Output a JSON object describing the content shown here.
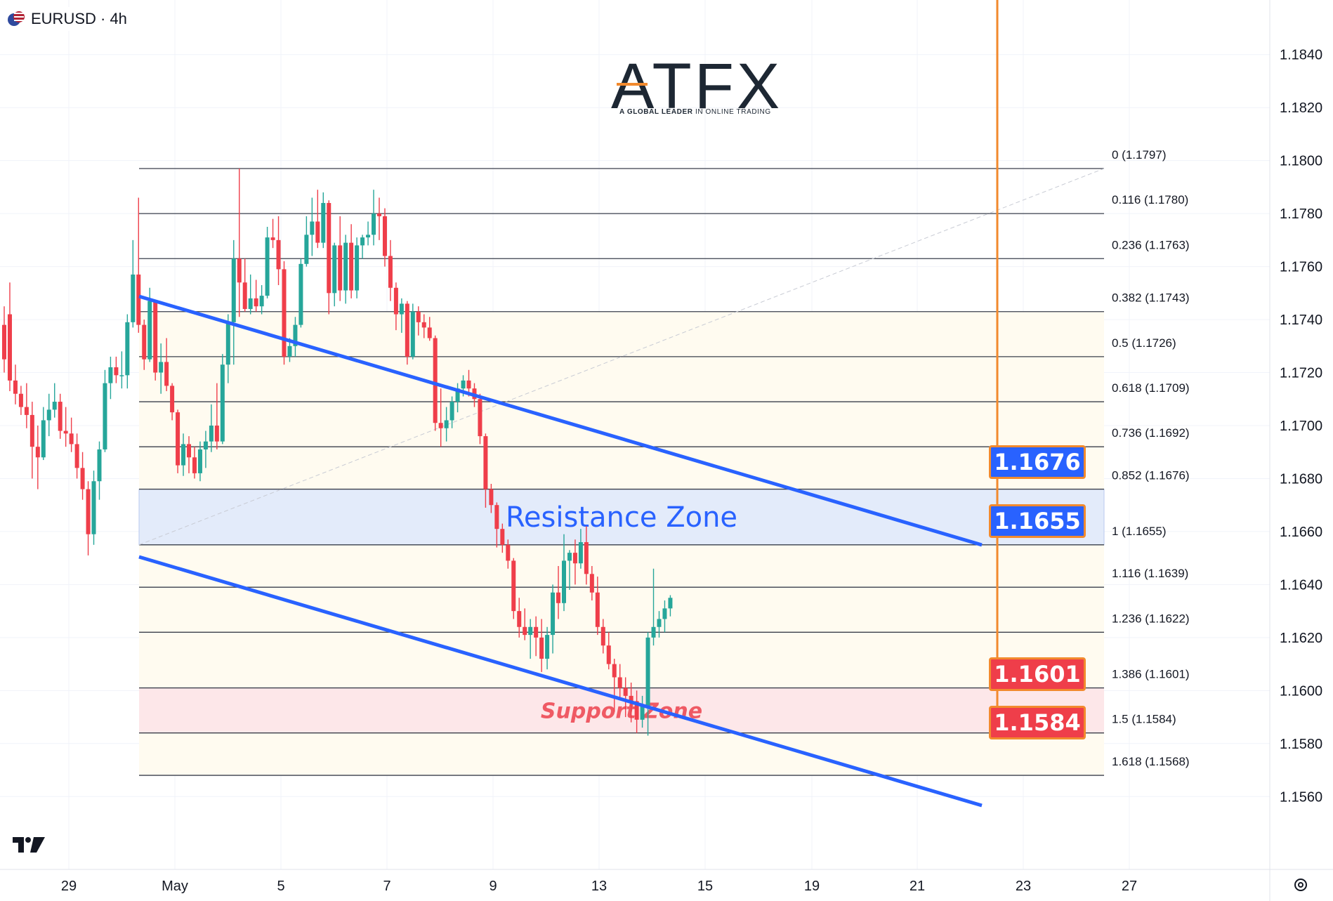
{
  "header": {
    "symbol_title": "EURUSD · 4h"
  },
  "logo": {
    "brand": "ATFX",
    "tagline_bold": "A GLOBAL LEADER",
    "tagline_rest": " IN ONLINE TRADING"
  },
  "colors": {
    "bull": "#26a69a",
    "bear": "#ef3e4a",
    "channel": "#2962ff",
    "resistance_fill": "#e3ebfa",
    "support_fill": "#fde7e9",
    "tag_blue": "#2962ff",
    "tag_red": "#ef3e4a",
    "tag_border": "#f28a2e"
  },
  "chart_data": {
    "type": "candlestick",
    "title": "EURUSD · 4h",
    "price_axis": {
      "ticks": [
        "1.1840",
        "1.1820",
        "1.1800",
        "1.1780",
        "1.1760",
        "1.1740",
        "1.1720",
        "1.1700",
        "1.1680",
        "1.1660",
        "1.1640",
        "1.1620",
        "1.1600",
        "1.1580",
        "1.1560"
      ],
      "range": [
        1.1548,
        1.1852
      ]
    },
    "date_axis": {
      "ticks": [
        "29",
        "May",
        "5",
        "7",
        "9",
        "13",
        "15",
        "19",
        "21",
        "23",
        "27"
      ]
    },
    "fib_levels": [
      {
        "ratio": "0",
        "price": "1.1797",
        "label": "0 (1.1797)"
      },
      {
        "ratio": "0.116",
        "price": "1.1780",
        "label": "0.116 (1.1780)"
      },
      {
        "ratio": "0.236",
        "price": "1.1763",
        "label": "0.236 (1.1763)"
      },
      {
        "ratio": "0.382",
        "price": "1.1743",
        "label": "0.382 (1.1743)"
      },
      {
        "ratio": "0.5",
        "price": "1.1726",
        "label": "0.5 (1.1726)"
      },
      {
        "ratio": "0.618",
        "price": "1.1709",
        "label": "0.618 (1.1709)"
      },
      {
        "ratio": "0.736",
        "price": "1.1692",
        "label": "0.736 (1.1692)"
      },
      {
        "ratio": "0.852",
        "price": "1.1676",
        "label": "0.852 (1.1676)"
      },
      {
        "ratio": "1",
        "price": "1.1655",
        "label": "1 (1.1655)"
      },
      {
        "ratio": "1.116",
        "price": "1.1639",
        "label": "1.116 (1.1639)"
      },
      {
        "ratio": "1.236",
        "price": "1.1622",
        "label": "1.236 (1.1622)"
      },
      {
        "ratio": "1.386",
        "price": "1.1601",
        "label": "1.386 (1.1601)"
      },
      {
        "ratio": "1.5",
        "price": "1.1584",
        "label": "1.5 (1.1584)"
      },
      {
        "ratio": "1.618",
        "price": "1.1568",
        "label": "1.618 (1.1568)"
      }
    ],
    "zones": [
      {
        "name": "Resistance Zone",
        "top": 1.1676,
        "bottom": 1.1655
      },
      {
        "name": "Support Zone",
        "top": 1.1601,
        "bottom": 1.1584
      }
    ],
    "price_tags": [
      {
        "value": "1.1676",
        "color": "blue"
      },
      {
        "value": "1.1655",
        "color": "blue"
      },
      {
        "value": "1.1601",
        "color": "red"
      },
      {
        "value": "1.1584",
        "color": "red"
      }
    ],
    "candles": [
      {
        "o": 1.1738,
        "h": 1.1745,
        "l": 1.172,
        "c": 1.1725
      },
      {
        "o": 1.1742,
        "h": 1.1754,
        "l": 1.1713,
        "c": 1.1717
      },
      {
        "o": 1.1717,
        "h": 1.1723,
        "l": 1.1708,
        "c": 1.1712
      },
      {
        "o": 1.1712,
        "h": 1.1715,
        "l": 1.1704,
        "c": 1.1707
      },
      {
        "o": 1.1707,
        "h": 1.1716,
        "l": 1.1699,
        "c": 1.1704
      },
      {
        "o": 1.1704,
        "h": 1.1709,
        "l": 1.168,
        "c": 1.1692
      },
      {
        "o": 1.1692,
        "h": 1.17,
        "l": 1.1676,
        "c": 1.1688
      },
      {
        "o": 1.1688,
        "h": 1.1707,
        "l": 1.1687,
        "c": 1.1702
      },
      {
        "o": 1.1702,
        "h": 1.1712,
        "l": 1.1696,
        "c": 1.1706
      },
      {
        "o": 1.1706,
        "h": 1.1716,
        "l": 1.1703,
        "c": 1.1709
      },
      {
        "o": 1.1709,
        "h": 1.1712,
        "l": 1.1695,
        "c": 1.1698
      },
      {
        "o": 1.1698,
        "h": 1.1707,
        "l": 1.1692,
        "c": 1.1697
      },
      {
        "o": 1.1697,
        "h": 1.1703,
        "l": 1.169,
        "c": 1.1693
      },
      {
        "o": 1.1693,
        "h": 1.1697,
        "l": 1.168,
        "c": 1.1684
      },
      {
        "o": 1.1684,
        "h": 1.169,
        "l": 1.1672,
        "c": 1.1676
      },
      {
        "o": 1.1676,
        "h": 1.1679,
        "l": 1.1651,
        "c": 1.1659
      },
      {
        "o": 1.1659,
        "h": 1.1683,
        "l": 1.1655,
        "c": 1.1679
      },
      {
        "o": 1.1679,
        "h": 1.1694,
        "l": 1.1672,
        "c": 1.1691
      },
      {
        "o": 1.1691,
        "h": 1.1721,
        "l": 1.169,
        "c": 1.1716
      },
      {
        "o": 1.1716,
        "h": 1.1726,
        "l": 1.171,
        "c": 1.1722
      },
      {
        "o": 1.1722,
        "h": 1.1726,
        "l": 1.1716,
        "c": 1.1719
      },
      {
        "o": 1.1719,
        "h": 1.1728,
        "l": 1.1714,
        "c": 1.1719
      },
      {
        "o": 1.1719,
        "h": 1.1742,
        "l": 1.1714,
        "c": 1.1739
      },
      {
        "o": 1.1739,
        "h": 1.177,
        "l": 1.1737,
        "c": 1.1757
      },
      {
        "o": 1.1757,
        "h": 1.1786,
        "l": 1.1735,
        "c": 1.1738
      },
      {
        "o": 1.1738,
        "h": 1.174,
        "l": 1.1721,
        "c": 1.1725
      },
      {
        "o": 1.1725,
        "h": 1.1752,
        "l": 1.1724,
        "c": 1.1747
      },
      {
        "o": 1.1747,
        "h": 1.1747,
        "l": 1.1717,
        "c": 1.172
      },
      {
        "o": 1.172,
        "h": 1.1731,
        "l": 1.1712,
        "c": 1.1724
      },
      {
        "o": 1.1724,
        "h": 1.1733,
        "l": 1.1713,
        "c": 1.1715
      },
      {
        "o": 1.1715,
        "h": 1.1716,
        "l": 1.1702,
        "c": 1.1705
      },
      {
        "o": 1.1705,
        "h": 1.1706,
        "l": 1.1682,
        "c": 1.1685
      },
      {
        "o": 1.1685,
        "h": 1.1697,
        "l": 1.1681,
        "c": 1.1693
      },
      {
        "o": 1.1693,
        "h": 1.1696,
        "l": 1.1682,
        "c": 1.1688
      },
      {
        "o": 1.1688,
        "h": 1.1692,
        "l": 1.168,
        "c": 1.1682
      },
      {
        "o": 1.1682,
        "h": 1.1694,
        "l": 1.1679,
        "c": 1.1691
      },
      {
        "o": 1.1691,
        "h": 1.1698,
        "l": 1.1684,
        "c": 1.1694
      },
      {
        "o": 1.1694,
        "h": 1.1708,
        "l": 1.169,
        "c": 1.17
      },
      {
        "o": 1.17,
        "h": 1.1716,
        "l": 1.1691,
        "c": 1.1694
      },
      {
        "o": 1.1694,
        "h": 1.1727,
        "l": 1.1693,
        "c": 1.1723
      },
      {
        "o": 1.1723,
        "h": 1.1742,
        "l": 1.1716,
        "c": 1.1739
      },
      {
        "o": 1.1739,
        "h": 1.177,
        "l": 1.1723,
        "c": 1.1763
      },
      {
        "o": 1.1763,
        "h": 1.1797,
        "l": 1.1741,
        "c": 1.1754
      },
      {
        "o": 1.1754,
        "h": 1.1763,
        "l": 1.1743,
        "c": 1.1744
      },
      {
        "o": 1.1744,
        "h": 1.1757,
        "l": 1.1742,
        "c": 1.1748
      },
      {
        "o": 1.1748,
        "h": 1.1755,
        "l": 1.1743,
        "c": 1.1745
      },
      {
        "o": 1.1745,
        "h": 1.1753,
        "l": 1.1742,
        "c": 1.1749
      },
      {
        "o": 1.1749,
        "h": 1.1775,
        "l": 1.1748,
        "c": 1.1771
      },
      {
        "o": 1.1771,
        "h": 1.1778,
        "l": 1.1767,
        "c": 1.177
      },
      {
        "o": 1.177,
        "h": 1.1779,
        "l": 1.1753,
        "c": 1.1759
      },
      {
        "o": 1.1759,
        "h": 1.1762,
        "l": 1.1723,
        "c": 1.1726
      },
      {
        "o": 1.1726,
        "h": 1.1733,
        "l": 1.1724,
        "c": 1.173
      },
      {
        "o": 1.173,
        "h": 1.1741,
        "l": 1.1726,
        "c": 1.1738
      },
      {
        "o": 1.1738,
        "h": 1.1763,
        "l": 1.1737,
        "c": 1.1761
      },
      {
        "o": 1.1761,
        "h": 1.1779,
        "l": 1.176,
        "c": 1.1772
      },
      {
        "o": 1.1772,
        "h": 1.1786,
        "l": 1.1764,
        "c": 1.1777
      },
      {
        "o": 1.1777,
        "h": 1.1789,
        "l": 1.1767,
        "c": 1.1769
      },
      {
        "o": 1.1769,
        "h": 1.1788,
        "l": 1.1767,
        "c": 1.1784
      },
      {
        "o": 1.1784,
        "h": 1.1785,
        "l": 1.1742,
        "c": 1.175
      },
      {
        "o": 1.175,
        "h": 1.1769,
        "l": 1.1745,
        "c": 1.1768
      },
      {
        "o": 1.1768,
        "h": 1.1779,
        "l": 1.1747,
        "c": 1.1751
      },
      {
        "o": 1.1751,
        "h": 1.1772,
        "l": 1.1746,
        "c": 1.1769
      },
      {
        "o": 1.1769,
        "h": 1.1776,
        "l": 1.1748,
        "c": 1.1751
      },
      {
        "o": 1.1751,
        "h": 1.1771,
        "l": 1.1748,
        "c": 1.1768
      },
      {
        "o": 1.1768,
        "h": 1.1772,
        "l": 1.1763,
        "c": 1.1771
      },
      {
        "o": 1.1771,
        "h": 1.1777,
        "l": 1.1768,
        "c": 1.1772
      },
      {
        "o": 1.1772,
        "h": 1.1789,
        "l": 1.1768,
        "c": 1.178
      },
      {
        "o": 1.178,
        "h": 1.1786,
        "l": 1.177,
        "c": 1.1779
      },
      {
        "o": 1.1779,
        "h": 1.1782,
        "l": 1.176,
        "c": 1.1764
      },
      {
        "o": 1.1764,
        "h": 1.177,
        "l": 1.1747,
        "c": 1.1752
      },
      {
        "o": 1.1752,
        "h": 1.1754,
        "l": 1.1736,
        "c": 1.1742
      },
      {
        "o": 1.1742,
        "h": 1.1748,
        "l": 1.1735,
        "c": 1.1746
      },
      {
        "o": 1.1746,
        "h": 1.1747,
        "l": 1.1723,
        "c": 1.1726
      },
      {
        "o": 1.1726,
        "h": 1.1746,
        "l": 1.1725,
        "c": 1.1743
      },
      {
        "o": 1.1743,
        "h": 1.1745,
        "l": 1.1734,
        "c": 1.1739
      },
      {
        "o": 1.1739,
        "h": 1.1742,
        "l": 1.1733,
        "c": 1.1737
      },
      {
        "o": 1.1737,
        "h": 1.1741,
        "l": 1.1732,
        "c": 1.1733
      },
      {
        "o": 1.1733,
        "h": 1.1734,
        "l": 1.1698,
        "c": 1.1701
      },
      {
        "o": 1.1701,
        "h": 1.1714,
        "l": 1.1692,
        "c": 1.1699
      },
      {
        "o": 1.1699,
        "h": 1.1707,
        "l": 1.1694,
        "c": 1.1702
      },
      {
        "o": 1.1702,
        "h": 1.1711,
        "l": 1.1699,
        "c": 1.1709
      },
      {
        "o": 1.1709,
        "h": 1.1716,
        "l": 1.1705,
        "c": 1.1714
      },
      {
        "o": 1.1714,
        "h": 1.1719,
        "l": 1.1711,
        "c": 1.1717
      },
      {
        "o": 1.1717,
        "h": 1.1721,
        "l": 1.1711,
        "c": 1.1714
      },
      {
        "o": 1.1714,
        "h": 1.1716,
        "l": 1.1707,
        "c": 1.171
      },
      {
        "o": 1.171,
        "h": 1.1712,
        "l": 1.1693,
        "c": 1.1696
      },
      {
        "o": 1.1696,
        "h": 1.1697,
        "l": 1.1669,
        "c": 1.1676
      },
      {
        "o": 1.1676,
        "h": 1.1678,
        "l": 1.1667,
        "c": 1.167
      },
      {
        "o": 1.167,
        "h": 1.1671,
        "l": 1.1654,
        "c": 1.1661
      },
      {
        "o": 1.1661,
        "h": 1.1663,
        "l": 1.1652,
        "c": 1.1655
      },
      {
        "o": 1.1655,
        "h": 1.1657,
        "l": 1.1646,
        "c": 1.1649
      },
      {
        "o": 1.1649,
        "h": 1.165,
        "l": 1.1627,
        "c": 1.163
      },
      {
        "o": 1.163,
        "h": 1.1635,
        "l": 1.162,
        "c": 1.1624
      },
      {
        "o": 1.1624,
        "h": 1.1631,
        "l": 1.1619,
        "c": 1.1621
      },
      {
        "o": 1.1621,
        "h": 1.1627,
        "l": 1.1612,
        "c": 1.1624
      },
      {
        "o": 1.1624,
        "h": 1.1628,
        "l": 1.1613,
        "c": 1.162
      },
      {
        "o": 1.162,
        "h": 1.1627,
        "l": 1.1607,
        "c": 1.1612
      },
      {
        "o": 1.1612,
        "h": 1.1624,
        "l": 1.1608,
        "c": 1.1621
      },
      {
        "o": 1.1621,
        "h": 1.164,
        "l": 1.1614,
        "c": 1.1637
      },
      {
        "o": 1.1637,
        "h": 1.1647,
        "l": 1.1627,
        "c": 1.1633
      },
      {
        "o": 1.1633,
        "h": 1.1659,
        "l": 1.163,
        "c": 1.1649
      },
      {
        "o": 1.1649,
        "h": 1.1653,
        "l": 1.1638,
        "c": 1.1652
      },
      {
        "o": 1.1652,
        "h": 1.1657,
        "l": 1.164,
        "c": 1.1648
      },
      {
        "o": 1.1648,
        "h": 1.1661,
        "l": 1.1646,
        "c": 1.1656
      },
      {
        "o": 1.1656,
        "h": 1.1662,
        "l": 1.164,
        "c": 1.1644
      },
      {
        "o": 1.1644,
        "h": 1.1647,
        "l": 1.1634,
        "c": 1.1637
      },
      {
        "o": 1.1637,
        "h": 1.1643,
        "l": 1.1621,
        "c": 1.1624
      },
      {
        "o": 1.1624,
        "h": 1.1627,
        "l": 1.1614,
        "c": 1.1617
      },
      {
        "o": 1.1617,
        "h": 1.1622,
        "l": 1.1608,
        "c": 1.161
      },
      {
        "o": 1.161,
        "h": 1.1612,
        "l": 1.1592,
        "c": 1.1605
      },
      {
        "o": 1.1605,
        "h": 1.161,
        "l": 1.1597,
        "c": 1.1601
      },
      {
        "o": 1.1601,
        "h": 1.1605,
        "l": 1.159,
        "c": 1.1598
      },
      {
        "o": 1.1598,
        "h": 1.1603,
        "l": 1.1588,
        "c": 1.1596
      },
      {
        "o": 1.1596,
        "h": 1.16,
        "l": 1.1584,
        "c": 1.1589
      },
      {
        "o": 1.1589,
        "h": 1.1598,
        "l": 1.1586,
        "c": 1.1594
      },
      {
        "o": 1.1594,
        "h": 1.1622,
        "l": 1.1583,
        "c": 1.162
      },
      {
        "o": 1.162,
        "h": 1.1646,
        "l": 1.1617,
        "c": 1.1624
      },
      {
        "o": 1.1624,
        "h": 1.163,
        "l": 1.162,
        "c": 1.1627
      },
      {
        "o": 1.1627,
        "h": 1.1634,
        "l": 1.1622,
        "c": 1.1631
      },
      {
        "o": 1.1631,
        "h": 1.1636,
        "l": 1.1628,
        "c": 1.1635
      }
    ]
  }
}
